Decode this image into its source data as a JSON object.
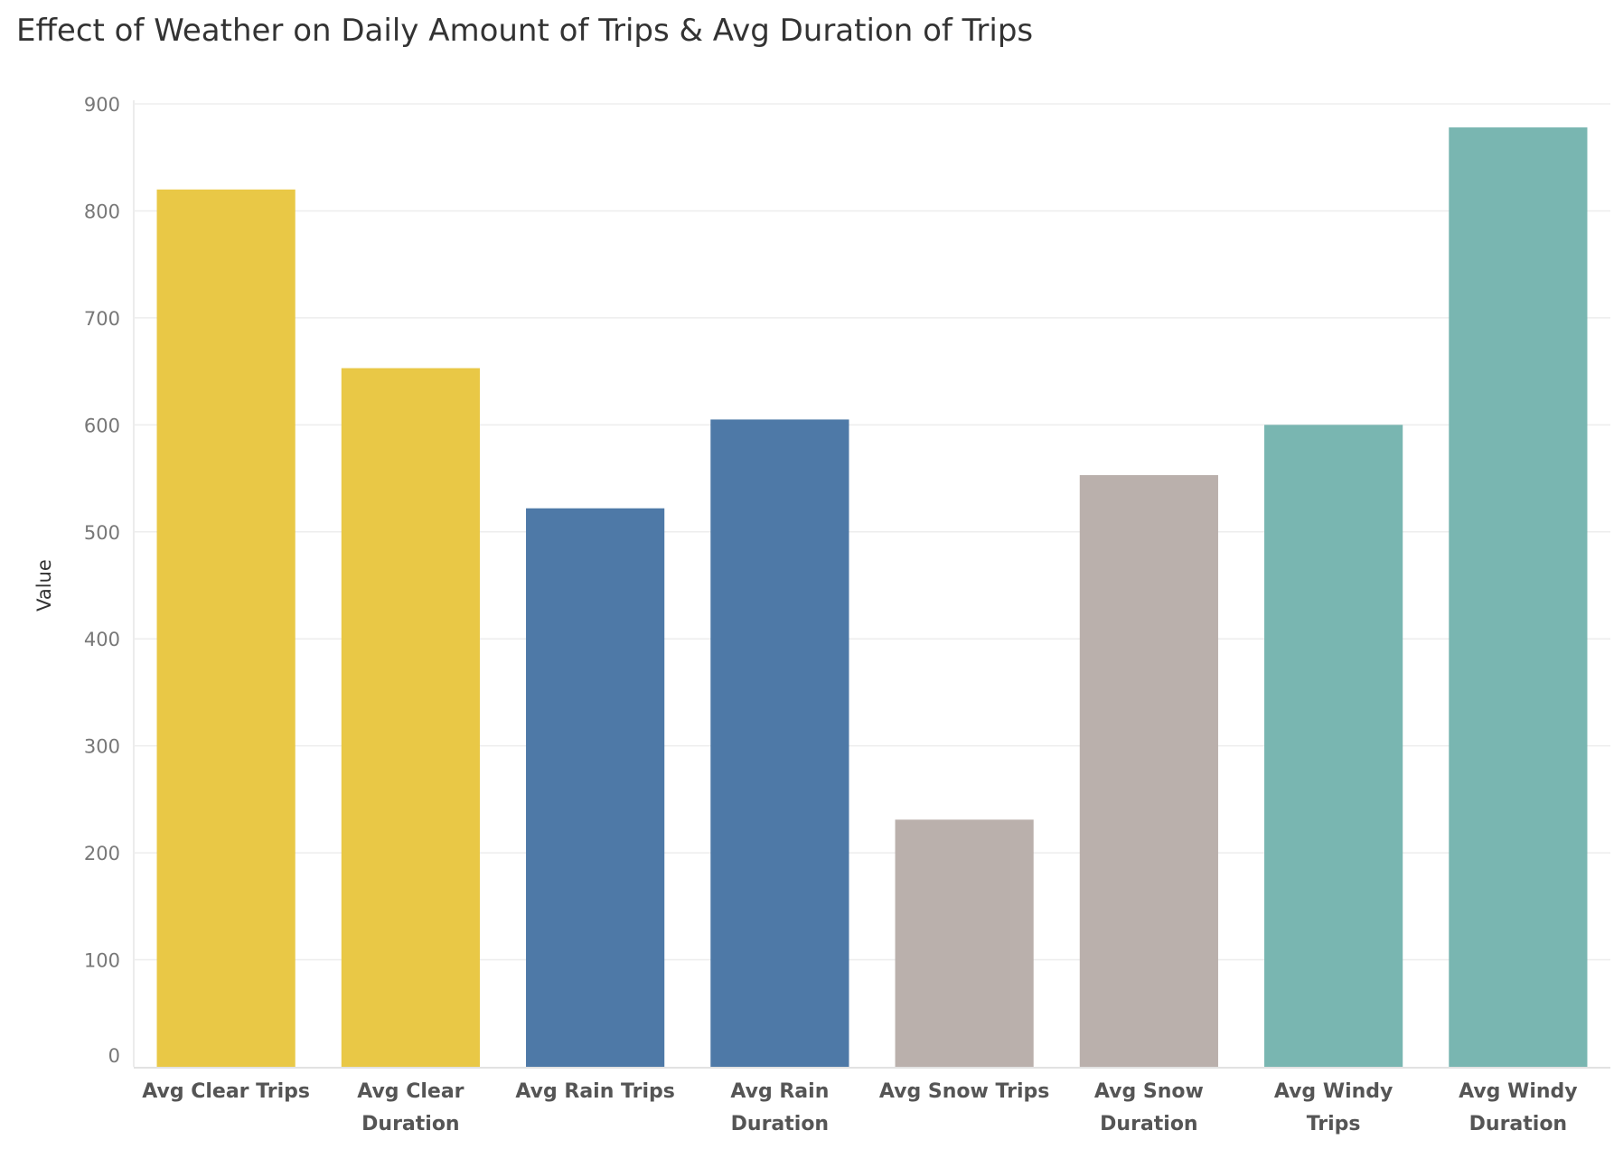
{
  "chart_data": {
    "type": "bar",
    "title": "Effect of Weather on Daily Amount of Trips & Avg Duration of Trips",
    "xlabel": "",
    "ylabel": "Value",
    "ylim": [
      0,
      900
    ],
    "yticks": [
      0,
      100,
      200,
      300,
      400,
      500,
      600,
      700,
      800,
      900
    ],
    "grid": true,
    "legend": "none",
    "categories": [
      [
        "Avg Clear Trips"
      ],
      [
        "Avg Clear",
        "Duration"
      ],
      [
        "Avg Rain Trips"
      ],
      [
        "Avg Rain",
        "Duration"
      ],
      [
        "Avg Snow Trips"
      ],
      [
        "Avg Snow",
        "Duration"
      ],
      [
        "Avg Windy",
        "Trips"
      ],
      [
        "Avg Windy",
        "Duration"
      ]
    ],
    "values": [
      820,
      653,
      522,
      605,
      231,
      553,
      600,
      878
    ],
    "colors": [
      "#e9c846",
      "#e9c846",
      "#4e79a7",
      "#4e79a7",
      "#bab0ac",
      "#bab0ac",
      "#79b6b1",
      "#79b6b1"
    ]
  }
}
